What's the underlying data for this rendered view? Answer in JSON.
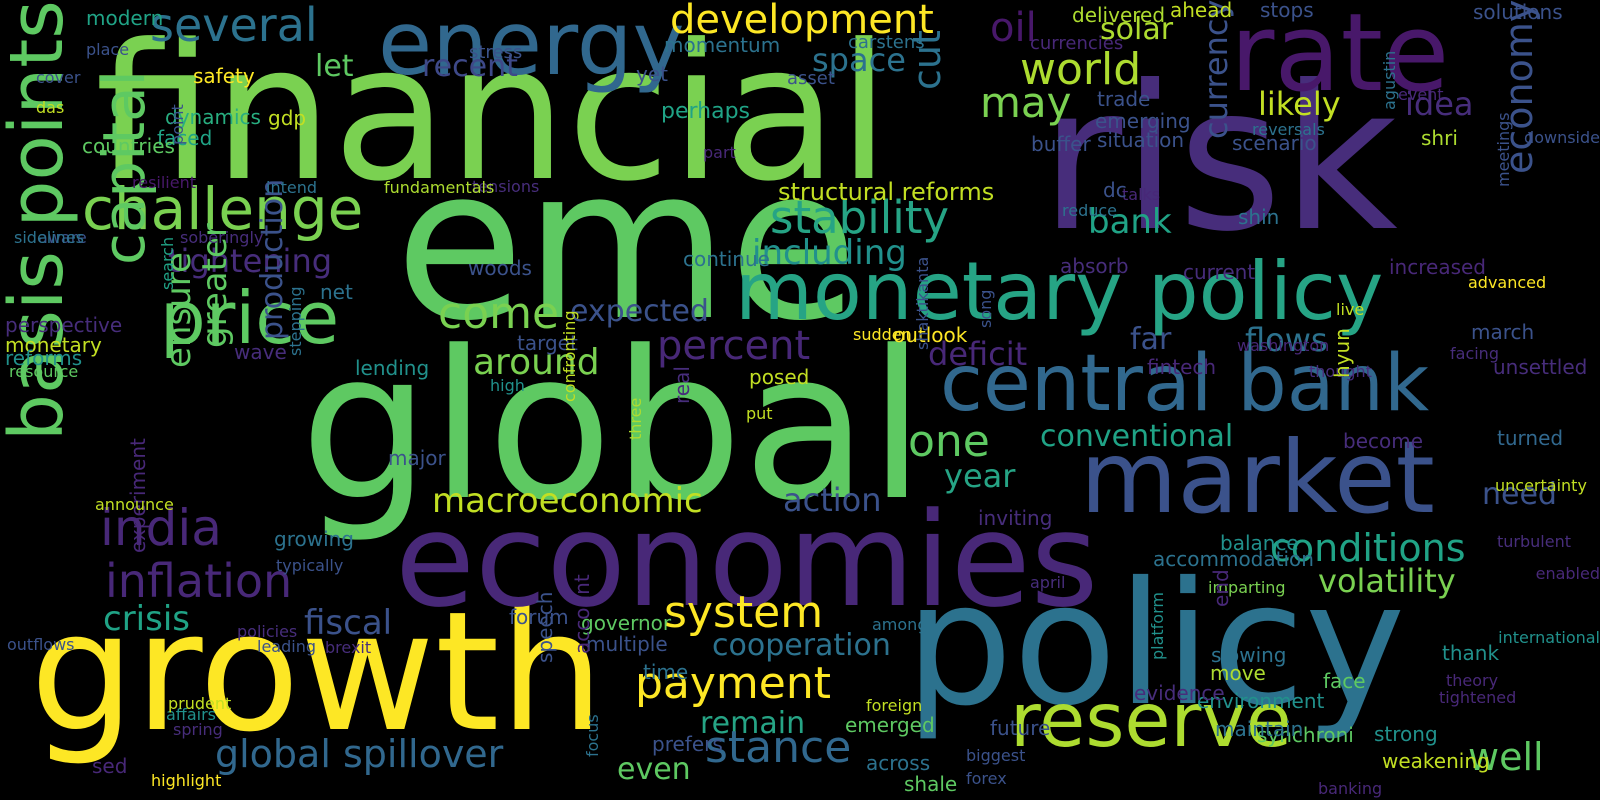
{
  "palette": {
    "dark_purple": "#48186a",
    "purple": "#472d7b",
    "indigo": "#3b528b",
    "blue": "#2c728e",
    "teal": "#21918c",
    "teal_green": "#28ae80",
    "green": "#5ec962",
    "light_green": "#addc30",
    "yellow": "#fde725",
    "background": "#000000"
  },
  "words": [
    {
      "text": "financial",
      "color": "#7ad151",
      "rot": 0
    },
    {
      "text": "eme",
      "color": "#5ec962",
      "rot": 0
    },
    {
      "text": "risk",
      "color": "#472d7b",
      "rot": 0
    },
    {
      "text": "global",
      "color": "#5ec962",
      "rot": 0
    },
    {
      "text": "growth",
      "color": "#fde725",
      "rot": 0
    },
    {
      "text": "policy",
      "color": "#2c728e",
      "rot": 0
    },
    {
      "text": "economies",
      "color": "#482878",
      "rot": 0
    },
    {
      "text": "rate",
      "color": "#48186a",
      "rot": 0
    },
    {
      "text": "market",
      "color": "#3b528b",
      "rot": 0
    },
    {
      "text": "energy",
      "color": "#31688e",
      "rot": 0
    },
    {
      "text": "basis points",
      "color": "#5ec962",
      "rot": -90
    },
    {
      "text": "monetary policy",
      "color": "#26a485",
      "rot": 0
    },
    {
      "text": "central bank",
      "color": "#31688e",
      "rot": 0
    },
    {
      "text": "reserve",
      "color": "#addc30",
      "rot": 0
    },
    {
      "text": "price",
      "color": "#5ec962",
      "rot": 0
    },
    {
      "text": "challenge",
      "color": "#7ad151",
      "rot": 0
    },
    {
      "text": "several",
      "color": "#2c728e",
      "rot": 0
    },
    {
      "text": "development",
      "color": "#fde725",
      "rot": 0
    },
    {
      "text": "oil",
      "color": "#48186a",
      "rot": 0
    },
    {
      "text": "world",
      "color": "#addc30",
      "rot": 0
    },
    {
      "text": "solar",
      "color": "#addc30",
      "rot": 0
    },
    {
      "text": "currency",
      "color": "#3b528b",
      "rot": -90
    },
    {
      "text": "economy",
      "color": "#3b528b",
      "rot": -90
    },
    {
      "text": "stability",
      "color": "#26a485",
      "rot": 0
    },
    {
      "text": "may",
      "color": "#7ad151",
      "rot": 0
    },
    {
      "text": "likely",
      "color": "#c2df23",
      "rot": 0
    },
    {
      "text": "idea",
      "color": "#472d7b",
      "rot": 0
    },
    {
      "text": "bank",
      "color": "#20a386",
      "rot": 0
    },
    {
      "text": "capital",
      "color": "#5ec962",
      "rot": -90
    },
    {
      "text": "india",
      "color": "#482878",
      "rot": 0
    },
    {
      "text": "inflation",
      "color": "#482878",
      "rot": 0
    },
    {
      "text": "tightening",
      "color": "#472d7b",
      "rot": 0
    },
    {
      "text": "come",
      "color": "#7ad151",
      "rot": 0
    },
    {
      "text": "percent",
      "color": "#482878",
      "rot": 0
    },
    {
      "text": "deficit",
      "color": "#482878",
      "rot": 0
    },
    {
      "text": "around",
      "color": "#7ad151",
      "rot": 0
    },
    {
      "text": "one",
      "color": "#5ec962",
      "rot": 0
    },
    {
      "text": "year",
      "color": "#26a485",
      "rot": 0
    },
    {
      "text": "conventional",
      "color": "#20a386",
      "rot": 0
    },
    {
      "text": "flows",
      "color": "#2c728e",
      "rot": 0
    },
    {
      "text": "far",
      "color": "#3b528b",
      "rot": 0
    },
    {
      "text": "conditions",
      "color": "#20a386",
      "rot": 0
    },
    {
      "text": "volatility",
      "color": "#7ad151",
      "rot": 0
    },
    {
      "text": "macroeconomic",
      "color": "#c2df23",
      "rot": 0
    },
    {
      "text": "action",
      "color": "#3b528b",
      "rot": 0
    },
    {
      "text": "expected",
      "color": "#3b528b",
      "rot": 0
    },
    {
      "text": "system",
      "color": "#fde725",
      "rot": 0
    },
    {
      "text": "payment",
      "color": "#fde725",
      "rot": 0
    },
    {
      "text": "cooperation",
      "color": "#2c728e",
      "rot": 0
    },
    {
      "text": "remain",
      "color": "#26a485",
      "rot": 0
    },
    {
      "text": "stance",
      "color": "#31688e",
      "rot": 0
    },
    {
      "text": "global spillover",
      "color": "#31688e",
      "rot": 0
    },
    {
      "text": "even",
      "color": "#5ec962",
      "rot": 0
    },
    {
      "text": "fiscal",
      "color": "#3b528b",
      "rot": 0
    },
    {
      "text": "crisis",
      "color": "#20a386",
      "rot": 0
    },
    {
      "text": "well",
      "color": "#5ec962",
      "rot": 0
    },
    {
      "text": "need",
      "color": "#3b528b",
      "rot": 0
    },
    {
      "text": "including",
      "color": "#21918c",
      "rot": 0
    },
    {
      "text": "space",
      "color": "#2c728e",
      "rot": 0
    },
    {
      "text": "recent",
      "color": "#3e4989",
      "rot": 0
    },
    {
      "text": "let",
      "color": "#5ec962",
      "rot": 0
    },
    {
      "text": "cut",
      "color": "#2c728e",
      "rot": -90
    },
    {
      "text": "ensure",
      "color": "#5ec962",
      "rot": -90
    },
    {
      "text": "greater",
      "color": "#5ec962",
      "rot": -90
    },
    {
      "text": "production",
      "color": "#3b528b",
      "rot": -90
    },
    {
      "text": "structural reforms",
      "color": "#c2df23",
      "rot": 0
    },
    {
      "text": "perhaps",
      "color": "#20a386",
      "rot": 0
    },
    {
      "text": "dynamics",
      "color": "#28ae80",
      "rot": 0
    },
    {
      "text": "faced",
      "color": "#20a386",
      "rot": 0
    },
    {
      "text": "safety",
      "color": "#fde725",
      "rot": 0
    },
    {
      "text": "countries",
      "color": "#5ec962",
      "rot": 0
    },
    {
      "text": "gdp",
      "color": "#c2df23",
      "rot": 0
    },
    {
      "text": "yet",
      "color": "#3b528b",
      "rot": 0
    },
    {
      "text": "momentum",
      "color": "#2c728e",
      "rot": 0
    },
    {
      "text": "modern",
      "color": "#20a386",
      "rot": 0
    },
    {
      "text": "place",
      "color": "#3b528b",
      "rot": 0
    },
    {
      "text": "cover",
      "color": "#3b528b",
      "rot": 0
    },
    {
      "text": "das",
      "color": "#c2df23",
      "rot": 0
    },
    {
      "text": "delivered",
      "color": "#addc30",
      "rot": 0
    },
    {
      "text": "ahead",
      "color": "#c2df23",
      "rot": 0
    },
    {
      "text": "stops",
      "color": "#3b528b",
      "rot": 0
    },
    {
      "text": "solutions",
      "color": "#3b528b",
      "rot": 0
    },
    {
      "text": "currencies",
      "color": "#482878",
      "rot": 0
    },
    {
      "text": "carstens",
      "color": "#2c728e",
      "rot": 0
    },
    {
      "text": "stress",
      "color": "#3b528b",
      "rot": 0
    },
    {
      "text": "asset",
      "color": "#3b528b",
      "rot": 0
    },
    {
      "text": "point",
      "color": "#3b528b",
      "rot": -90
    },
    {
      "text": "part",
      "color": "#482878",
      "rot": 0
    },
    {
      "text": "tensions",
      "color": "#472d7b",
      "rot": 0
    },
    {
      "text": "fundamentals",
      "color": "#addc30",
      "rot": 0
    },
    {
      "text": "intend",
      "color": "#2c728e",
      "rot": 0
    },
    {
      "text": "resilient",
      "color": "#48186a",
      "rot": 0
    },
    {
      "text": "aware",
      "color": "#3b528b",
      "rot": 0
    },
    {
      "text": "soberingly",
      "color": "#472d7b",
      "rot": 0
    },
    {
      "text": "sidelines",
      "color": "#2c728e",
      "rot": 0
    },
    {
      "text": "search",
      "color": "#20a386",
      "rot": -90
    },
    {
      "text": "perspective",
      "color": "#472d7b",
      "rot": 0
    },
    {
      "text": "monetary",
      "color": "#c2df23",
      "rot": 0
    },
    {
      "text": "reforms",
      "color": "#21918c",
      "rot": 0
    },
    {
      "text": "resource",
      "color": "#5ec962",
      "rot": 0
    },
    {
      "text": "woods",
      "color": "#3b528b",
      "rot": 0
    },
    {
      "text": "net",
      "color": "#2c728e",
      "rot": 0
    },
    {
      "text": "continue",
      "color": "#2c728e",
      "rot": 0
    },
    {
      "text": "target",
      "color": "#3b528b",
      "rot": 0
    },
    {
      "text": "lending",
      "color": "#21918c",
      "rot": 0
    },
    {
      "text": "major",
      "color": "#3b528b",
      "rot": 0
    },
    {
      "text": "high",
      "color": "#21918c",
      "rot": 0
    },
    {
      "text": "wave",
      "color": "#472d7b",
      "rot": 0
    },
    {
      "text": "stepping",
      "color": "#2c728e",
      "rot": -90
    },
    {
      "text": "confronting",
      "color": "#c2df23",
      "rot": -90
    },
    {
      "text": "three",
      "color": "#addc30",
      "rot": -90
    },
    {
      "text": "real",
      "color": "#472d7b",
      "rot": -90
    },
    {
      "text": "put",
      "color": "#c2df23",
      "rot": 0
    },
    {
      "text": "posed",
      "color": "#c2df23",
      "rot": 0
    },
    {
      "text": "outlook",
      "color": "#fde725",
      "rot": 0
    },
    {
      "text": "sudden",
      "color": "#fde725",
      "rot": 0
    },
    {
      "text": "shaktikanta",
      "color": "#3b528b",
      "rot": -90
    },
    {
      "text": "song",
      "color": "#3b528b",
      "rot": -90
    },
    {
      "text": "washington",
      "color": "#482878",
      "rot": 0
    },
    {
      "text": "fintech",
      "color": "#482878",
      "rot": 0
    },
    {
      "text": "thought",
      "color": "#472d7b",
      "rot": 0
    },
    {
      "text": "hyun",
      "color": "#c2df23",
      "rot": -90
    },
    {
      "text": "live",
      "color": "#c2df23",
      "rot": 0
    },
    {
      "text": "absorb",
      "color": "#472d7b",
      "rot": 0
    },
    {
      "text": "current",
      "color": "#472d7b",
      "rot": 0
    },
    {
      "text": "increased",
      "color": "#482878",
      "rot": 0
    },
    {
      "text": "advanced",
      "color": "#fde725",
      "rot": 0
    },
    {
      "text": "march",
      "color": "#3b528b",
      "rot": 0
    },
    {
      "text": "facing",
      "color": "#472d7b",
      "rot": 0
    },
    {
      "text": "unsettled",
      "color": "#472d7b",
      "rot": 0
    },
    {
      "text": "trade",
      "color": "#3b528b",
      "rot": 0
    },
    {
      "text": "emerging",
      "color": "#3b528b",
      "rot": 0
    },
    {
      "text": "situation",
      "color": "#3b528b",
      "rot": 0
    },
    {
      "text": "buffer",
      "color": "#3b528b",
      "rot": 0
    },
    {
      "text": "scenario",
      "color": "#3b528b",
      "rot": 0
    },
    {
      "text": "reversals",
      "color": "#2c728e",
      "rot": 0
    },
    {
      "text": "event",
      "color": "#482878",
      "rot": 0
    },
    {
      "text": "shri",
      "color": "#addc30",
      "rot": 0
    },
    {
      "text": "downside",
      "color": "#3b528b",
      "rot": 0
    },
    {
      "text": "agustin",
      "color": "#2c728e",
      "rot": -90
    },
    {
      "text": "meetings",
      "color": "#3b528b",
      "rot": -90
    },
    {
      "text": "talks",
      "color": "#482878",
      "rot": 0
    },
    {
      "text": "dc",
      "color": "#3b528b",
      "rot": 0
    },
    {
      "text": "reduce",
      "color": "#2c728e",
      "rot": 0
    },
    {
      "text": "shin",
      "color": "#2c728e",
      "rot": 0
    },
    {
      "text": "turned",
      "color": "#31688e",
      "rot": 0
    },
    {
      "text": "become",
      "color": "#472d7b",
      "rot": 0
    },
    {
      "text": "uncertainty",
      "color": "#c2df23",
      "rot": 0
    },
    {
      "text": "inviting",
      "color": "#472d7b",
      "rot": 0
    },
    {
      "text": "balance",
      "color": "#21918c",
      "rot": 0
    },
    {
      "text": "accommodation",
      "color": "#2c728e",
      "rot": 0
    },
    {
      "text": "growing",
      "color": "#2c728e",
      "rot": 0
    },
    {
      "text": "typically",
      "color": "#3b528b",
      "rot": 0
    },
    {
      "text": "april",
      "color": "#472d7b",
      "rot": 0
    },
    {
      "text": "imparting",
      "color": "#7ad151",
      "rot": 0
    },
    {
      "text": "turbulent",
      "color": "#472d7b",
      "rot": 0
    },
    {
      "text": "enabled",
      "color": "#482878",
      "rot": 0
    },
    {
      "text": "end",
      "color": "#482878",
      "rot": -90
    },
    {
      "text": "international",
      "color": "#21918c",
      "rot": 0
    },
    {
      "text": "experiment",
      "color": "#482878",
      "rot": -90
    },
    {
      "text": "announce",
      "color": "#c2df23",
      "rot": 0
    },
    {
      "text": "outflows",
      "color": "#3b528b",
      "rot": 0
    },
    {
      "text": "policies",
      "color": "#472d7b",
      "rot": 0
    },
    {
      "text": "leading",
      "color": "#3b528b",
      "rot": 0
    },
    {
      "text": "brexit",
      "color": "#472d7b",
      "rot": 0
    },
    {
      "text": "forum",
      "color": "#3b528b",
      "rot": 0
    },
    {
      "text": "governor",
      "color": "#5ec962",
      "rot": 0
    },
    {
      "text": "multiple",
      "color": "#3b528b",
      "rot": 0
    },
    {
      "text": "time",
      "color": "#2c728e",
      "rot": 0
    },
    {
      "text": "prefers",
      "color": "#3b528b",
      "rot": 0
    },
    {
      "text": "among",
      "color": "#2c728e",
      "rot": 0
    },
    {
      "text": "foreign",
      "color": "#c2df23",
      "rot": 0
    },
    {
      "text": "emerged",
      "color": "#5ec962",
      "rot": 0
    },
    {
      "text": "across",
      "color": "#2c728e",
      "rot": 0
    },
    {
      "text": "shale",
      "color": "#5ec962",
      "rot": 0
    },
    {
      "text": "forex",
      "color": "#3b528b",
      "rot": 0
    },
    {
      "text": "biggest",
      "color": "#3b528b",
      "rot": 0
    },
    {
      "text": "banking",
      "color": "#482878",
      "rot": 0
    },
    {
      "text": "weakening",
      "color": "#c2df23",
      "rot": 0
    },
    {
      "text": "strong",
      "color": "#21918c",
      "rot": 0
    },
    {
      "text": "synchroni",
      "color": "#5ec962",
      "rot": 0
    },
    {
      "text": "maintain",
      "color": "#2c728e",
      "rot": 0
    },
    {
      "text": "future",
      "color": "#3b528b",
      "rot": 0
    },
    {
      "text": "environment",
      "color": "#21918c",
      "rot": 0
    },
    {
      "text": "face",
      "color": "#5ec962",
      "rot": 0
    },
    {
      "text": "move",
      "color": "#addc30",
      "rot": 0
    },
    {
      "text": "slowing",
      "color": "#2c728e",
      "rot": 0
    },
    {
      "text": "thank",
      "color": "#21918c",
      "rot": 0
    },
    {
      "text": "theory",
      "color": "#482878",
      "rot": 0
    },
    {
      "text": "tightened",
      "color": "#482878",
      "rot": 0
    },
    {
      "text": "evidence",
      "color": "#472d7b",
      "rot": 0
    },
    {
      "text": "platform",
      "color": "#21918c",
      "rot": -90
    },
    {
      "text": "speech",
      "color": "#3b528b",
      "rot": -90
    },
    {
      "text": "account",
      "color": "#482878",
      "rot": -90
    },
    {
      "text": "focus",
      "color": "#2c728e",
      "rot": -90
    },
    {
      "text": "highlight",
      "color": "#fde725",
      "rot": 0
    },
    {
      "text": "sed",
      "color": "#482878",
      "rot": 0
    },
    {
      "text": "spring",
      "color": "#472d7b",
      "rot": 0
    },
    {
      "text": "affairs",
      "color": "#21918c",
      "rot": 0
    },
    {
      "text": "prudent",
      "color": "#c2df23",
      "rot": 0
    }
  ]
}
